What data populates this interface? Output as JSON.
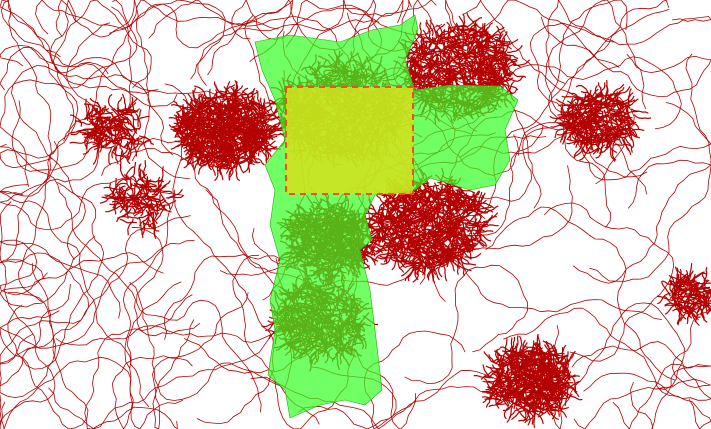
{
  "map": {
    "background_color": "#ffffff",
    "road_color": "#b30000",
    "region_color": "#33ff22",
    "region_opacity": 0.7,
    "selection_fill_color": "#d4e21c",
    "selection_border_color": "#f05020",
    "layers": [
      "road-network",
      "municipality-boundary",
      "selection-rectangle"
    ]
  }
}
